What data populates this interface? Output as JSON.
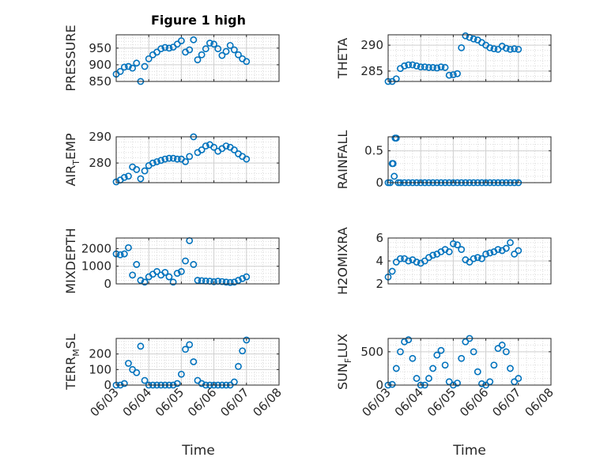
{
  "figure": {
    "title": "Figure 1 high"
  },
  "colors": {
    "marker": "#0072BD",
    "axis": "#262626",
    "grid": "#dcdcdc"
  },
  "chart_data": [
    {
      "id": "pressure",
      "type": "scatter",
      "title": "Figure 1 high",
      "ylabel": "PRESSURE",
      "ylim": [
        850,
        990
      ],
      "yticks": [
        850,
        900,
        950
      ],
      "x": [
        "06/03 00:00",
        "06/03 03:00",
        "06/03 06:00",
        "06/03 09:00",
        "06/03 12:00",
        "06/03 15:00",
        "06/03 18:00",
        "06/03 21:00",
        "06/04 00:00",
        "06/04 03:00",
        "06/04 06:00",
        "06/04 09:00",
        "06/04 12:00",
        "06/04 15:00",
        "06/04 18:00",
        "06/04 21:00",
        "06/05 00:00",
        "06/05 03:00",
        "06/05 06:00",
        "06/05 09:00",
        "06/05 12:00",
        "06/05 15:00",
        "06/05 18:00",
        "06/05 21:00",
        "06/06 00:00",
        "06/06 03:00",
        "06/06 06:00",
        "06/06 09:00",
        "06/06 12:00",
        "06/06 15:00",
        "06/06 18:00",
        "06/06 21:00",
        "06/07 00:00"
      ],
      "y": [
        872,
        880,
        893,
        895,
        890,
        905,
        850,
        895,
        918,
        930,
        938,
        948,
        952,
        950,
        953,
        962,
        972,
        938,
        945,
        975,
        915,
        930,
        948,
        965,
        962,
        948,
        928,
        940,
        958,
        945,
        930,
        918,
        910
      ]
    },
    {
      "id": "theta",
      "type": "scatter",
      "ylabel": "THETA",
      "ylim": [
        283,
        292
      ],
      "yticks": [
        285,
        290
      ],
      "x": [
        "06/03 00:00",
        "06/03 03:00",
        "06/03 06:00",
        "06/03 09:00",
        "06/03 12:00",
        "06/03 15:00",
        "06/03 18:00",
        "06/03 21:00",
        "06/04 00:00",
        "06/04 03:00",
        "06/04 06:00",
        "06/04 09:00",
        "06/04 12:00",
        "06/04 15:00",
        "06/04 18:00",
        "06/04 21:00",
        "06/05 00:00",
        "06/05 03:00",
        "06/05 06:00",
        "06/05 09:00",
        "06/05 12:00",
        "06/05 15:00",
        "06/05 18:00",
        "06/05 21:00",
        "06/06 00:00",
        "06/06 03:00",
        "06/06 06:00",
        "06/06 09:00",
        "06/06 12:00",
        "06/06 15:00",
        "06/06 18:00",
        "06/06 21:00",
        "06/07 00:00"
      ],
      "y": [
        283.0,
        283.0,
        283.5,
        285.5,
        286.0,
        286.2,
        286.2,
        286.0,
        285.8,
        285.8,
        285.7,
        285.7,
        285.6,
        285.8,
        285.7,
        284.2,
        284.3,
        284.5,
        289.5,
        291.8,
        291.5,
        291.2,
        291.0,
        290.5,
        290.0,
        289.5,
        289.3,
        289.2,
        289.8,
        289.4,
        289.2,
        289.3,
        289.2
      ]
    },
    {
      "id": "air_temp",
      "type": "scatter",
      "ylabel": [
        "AIR",
        "T",
        "EMP"
      ],
      "ylim": [
        272.5,
        290
      ],
      "yticks": [
        280,
        290
      ],
      "x": [
        "06/03 00:00",
        "06/03 03:00",
        "06/03 06:00",
        "06/03 09:00",
        "06/03 12:00",
        "06/03 15:00",
        "06/03 18:00",
        "06/03 21:00",
        "06/04 00:00",
        "06/04 03:00",
        "06/04 06:00",
        "06/04 09:00",
        "06/04 12:00",
        "06/04 15:00",
        "06/04 18:00",
        "06/04 21:00",
        "06/05 00:00",
        "06/05 03:00",
        "06/05 06:00",
        "06/05 09:00",
        "06/05 12:00",
        "06/05 15:00",
        "06/05 18:00",
        "06/05 21:00",
        "06/06 00:00",
        "06/06 03:00",
        "06/06 06:00",
        "06/06 09:00",
        "06/06 12:00",
        "06/06 15:00",
        "06/06 18:00",
        "06/06 21:00",
        "06/07 00:00"
      ],
      "y": [
        272.8,
        273.5,
        274.5,
        275.0,
        278.5,
        277.5,
        274.0,
        277.0,
        279.0,
        280.0,
        280.5,
        281.0,
        281.5,
        281.8,
        281.8,
        281.5,
        281.5,
        280.5,
        282.5,
        290.0,
        284.0,
        285.0,
        286.5,
        287.0,
        286.0,
        284.5,
        285.5,
        286.5,
        286.0,
        285.0,
        283.5,
        282.5,
        281.5
      ]
    },
    {
      "id": "rainfall",
      "type": "scatter",
      "ylabel": "RAINFALL",
      "ylim": [
        0,
        0.72
      ],
      "yticks": [
        0,
        0.5
      ],
      "x": [
        "06/03 00:00",
        "06/03 01:30",
        "06/03 03:00",
        "06/03 03:40",
        "06/03 04:30",
        "06/03 05:10",
        "06/03 06:00",
        "06/03 07:30",
        "06/03 09:00",
        "06/03 12:00",
        "06/03 15:00",
        "06/03 18:00",
        "06/03 21:00",
        "06/04 00:00",
        "06/04 03:00",
        "06/04 06:00",
        "06/04 09:00",
        "06/04 12:00",
        "06/04 15:00",
        "06/04 18:00",
        "06/04 21:00",
        "06/05 00:00",
        "06/05 03:00",
        "06/05 06:00",
        "06/05 09:00",
        "06/05 12:00",
        "06/05 15:00",
        "06/05 18:00",
        "06/05 21:00",
        "06/06 00:00",
        "06/06 03:00",
        "06/06 06:00",
        "06/06 09:00",
        "06/06 12:00",
        "06/06 15:00",
        "06/06 18:00",
        "06/06 21:00",
        "06/07 00:00"
      ],
      "y": [
        0,
        0,
        0.3,
        0.3,
        0.1,
        0.7,
        0.7,
        0,
        0,
        0,
        0,
        0,
        0,
        0,
        0,
        0,
        0,
        0,
        0,
        0,
        0,
        0,
        0,
        0,
        0,
        0,
        0,
        0,
        0,
        0,
        0,
        0,
        0,
        0,
        0,
        0,
        0,
        0
      ]
    },
    {
      "id": "mixdepth",
      "type": "scatter",
      "ylabel": "MIXDEPTH",
      "ylim": [
        0,
        2600
      ],
      "yticks": [
        0,
        1000,
        2000
      ],
      "x": [
        "06/03 00:00",
        "06/03 03:00",
        "06/03 06:00",
        "06/03 09:00",
        "06/03 12:00",
        "06/03 15:00",
        "06/03 18:00",
        "06/03 21:00",
        "06/04 00:00",
        "06/04 03:00",
        "06/04 06:00",
        "06/04 09:00",
        "06/04 12:00",
        "06/04 15:00",
        "06/04 18:00",
        "06/04 21:00",
        "06/05 00:00",
        "06/05 03:00",
        "06/05 06:00",
        "06/05 09:00",
        "06/05 12:00",
        "06/05 15:00",
        "06/05 18:00",
        "06/05 21:00",
        "06/06 00:00",
        "06/06 03:00",
        "06/06 06:00",
        "06/06 09:00",
        "06/06 12:00",
        "06/06 15:00",
        "06/06 18:00",
        "06/06 21:00",
        "06/07 00:00"
      ],
      "y": [
        1700,
        1650,
        1700,
        2050,
        500,
        1100,
        200,
        100,
        400,
        550,
        700,
        500,
        650,
        400,
        100,
        600,
        700,
        1300,
        2450,
        1100,
        200,
        180,
        160,
        150,
        120,
        150,
        130,
        100,
        80,
        100,
        200,
        300,
        400
      ]
    },
    {
      "id": "h2omixra",
      "type": "scatter",
      "ylabel": "H2OMIXRA",
      "ylim": [
        2,
        6
      ],
      "yticks": [
        2,
        4,
        6
      ],
      "x": [
        "06/03 00:00",
        "06/03 03:00",
        "06/03 06:00",
        "06/03 09:00",
        "06/03 12:00",
        "06/03 15:00",
        "06/03 18:00",
        "06/03 21:00",
        "06/04 00:00",
        "06/04 03:00",
        "06/04 06:00",
        "06/04 09:00",
        "06/04 12:00",
        "06/04 15:00",
        "06/04 18:00",
        "06/04 21:00",
        "06/05 00:00",
        "06/05 03:00",
        "06/05 06:00",
        "06/05 09:00",
        "06/05 12:00",
        "06/05 15:00",
        "06/05 18:00",
        "06/05 21:00",
        "06/06 00:00",
        "06/06 03:00",
        "06/06 06:00",
        "06/06 09:00",
        "06/06 12:00",
        "06/06 15:00",
        "06/06 18:00",
        "06/06 21:00",
        "06/07 00:00"
      ],
      "y": [
        2.6,
        3.1,
        3.9,
        4.2,
        4.2,
        4.0,
        4.1,
        3.9,
        3.8,
        4.0,
        4.3,
        4.5,
        4.6,
        4.8,
        5.0,
        4.8,
        5.5,
        5.4,
        5.0,
        4.1,
        3.9,
        4.2,
        4.3,
        4.2,
        4.6,
        4.7,
        4.8,
        5.0,
        4.9,
        5.1,
        5.6,
        4.6,
        4.9
      ]
    },
    {
      "id": "terr_msl",
      "type": "scatter",
      "ylabel": [
        "TERR",
        "M",
        "SL"
      ],
      "ylim": [
        0,
        300
      ],
      "yticks": [
        0,
        100,
        200
      ],
      "x": [
        "06/03 00:00",
        "06/03 03:00",
        "06/03 06:00",
        "06/03 09:00",
        "06/03 12:00",
        "06/03 15:00",
        "06/03 18:00",
        "06/03 21:00",
        "06/04 00:00",
        "06/04 03:00",
        "06/04 06:00",
        "06/04 09:00",
        "06/04 12:00",
        "06/04 15:00",
        "06/04 18:00",
        "06/04 21:00",
        "06/05 00:00",
        "06/05 03:00",
        "06/05 06:00",
        "06/05 09:00",
        "06/05 12:00",
        "06/05 15:00",
        "06/05 18:00",
        "06/05 21:00",
        "06/06 00:00",
        "06/06 03:00",
        "06/06 06:00",
        "06/06 09:00",
        "06/06 12:00",
        "06/06 15:00",
        "06/06 18:00",
        "06/06 21:00",
        "06/07 00:00"
      ],
      "y": [
        0,
        0,
        10,
        140,
        100,
        80,
        250,
        30,
        0,
        0,
        0,
        0,
        0,
        0,
        0,
        10,
        70,
        230,
        260,
        150,
        30,
        10,
        0,
        0,
        0,
        0,
        0,
        0,
        0,
        20,
        120,
        220,
        290
      ]
    },
    {
      "id": "sun_flux",
      "type": "scatter",
      "ylabel": [
        "SUN",
        "F",
        "LUX"
      ],
      "ylim": [
        0,
        700
      ],
      "yticks": [
        0,
        500
      ],
      "x": [
        "06/03 00:00",
        "06/03 03:00",
        "06/03 06:00",
        "06/03 09:00",
        "06/03 12:00",
        "06/03 15:00",
        "06/03 18:00",
        "06/03 21:00",
        "06/04 00:00",
        "06/04 03:00",
        "06/04 06:00",
        "06/04 09:00",
        "06/04 12:00",
        "06/04 15:00",
        "06/04 18:00",
        "06/04 21:00",
        "06/05 00:00",
        "06/05 03:00",
        "06/05 06:00",
        "06/05 09:00",
        "06/05 12:00",
        "06/05 15:00",
        "06/05 18:00",
        "06/05 21:00",
        "06/06 00:00",
        "06/06 03:00",
        "06/06 06:00",
        "06/06 09:00",
        "06/06 12:00",
        "06/06 15:00",
        "06/06 18:00",
        "06/06 21:00",
        "06/07 00:00"
      ],
      "y": [
        0,
        10,
        250,
        500,
        650,
        680,
        400,
        100,
        0,
        0,
        100,
        250,
        450,
        520,
        300,
        50,
        0,
        30,
        400,
        650,
        700,
        500,
        200,
        20,
        0,
        50,
        300,
        550,
        600,
        500,
        250,
        50,
        100
      ]
    }
  ],
  "axes": {
    "xlim": [
      "06/03 00:00",
      "06/08 00:00"
    ],
    "xticks": [
      "06/03",
      "06/04",
      "06/05",
      "06/06",
      "06/07",
      "06/08"
    ],
    "xlabel": "Time",
    "grid": true,
    "minor_grid": true
  }
}
